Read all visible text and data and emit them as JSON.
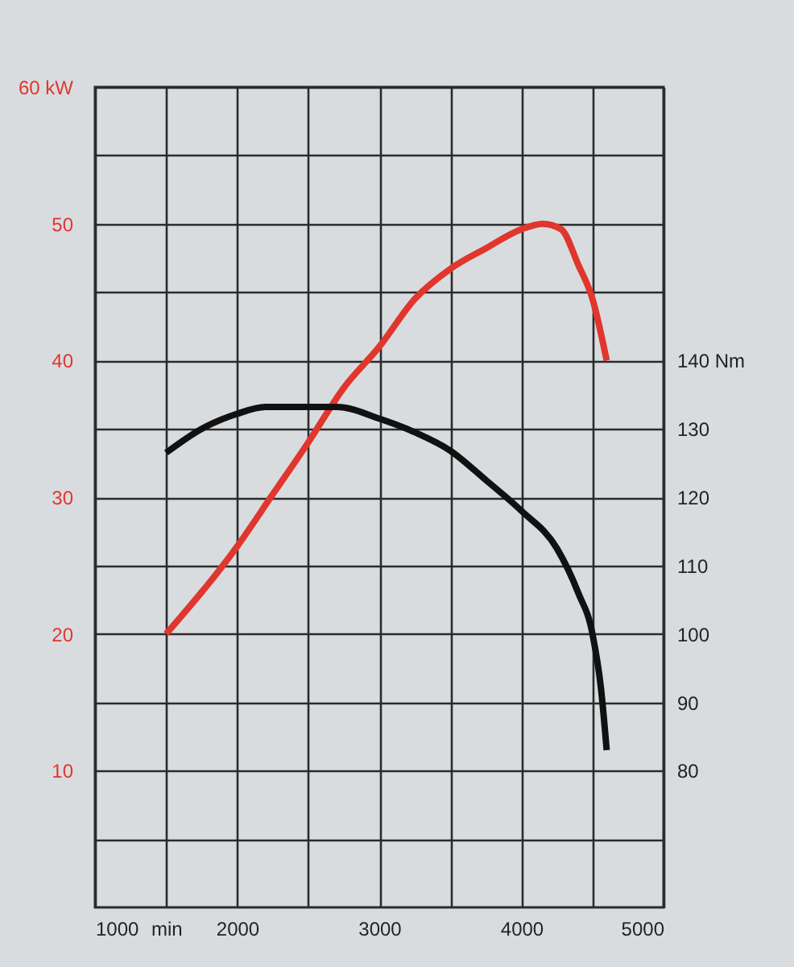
{
  "chart_data": {
    "type": "line",
    "grid": true,
    "xlim": [
      1000,
      5000
    ],
    "xticks": [
      1000,
      {
        "value": 1500,
        "label": "min"
      },
      2000,
      {
        "value": 2500,
        "label": null
      },
      3000,
      {
        "value": 3500,
        "label": null
      },
      4000,
      {
        "value": 4500,
        "label": null
      },
      5000
    ],
    "ylim": [
      0,
      60
    ],
    "yticks": [
      {
        "value": 5,
        "label": null
      },
      10,
      {
        "value": 15,
        "label": null
      },
      20,
      {
        "value": 25,
        "label": null
      },
      30,
      {
        "value": 35,
        "label": null
      },
      40,
      {
        "value": 45,
        "label": null
      },
      50,
      {
        "value": 55,
        "label": null
      },
      {
        "value": 60,
        "label": "60 kW"
      }
    ],
    "y2lim": [
      60,
      180
    ],
    "y2ticks": [
      80,
      90,
      100,
      110,
      120,
      130,
      {
        "value": 140,
        "label": "140 Nm"
      }
    ],
    "series": [
      {
        "color": "#e0362d",
        "x": [
          1500,
          2000,
          2250,
          2500,
          2750,
          3000,
          3250,
          3500,
          3750,
          4000,
          4150,
          4280,
          4400,
          4500,
          4600
        ],
        "values": [
          20,
          26.4,
          30.2,
          34,
          38,
          41,
          44.5,
          46.7,
          48.2,
          49.6,
          50,
          49.6,
          47,
          44.5,
          40
        ]
      },
      {
        "color": "#111111",
        "axis": "y2",
        "x": [
          1500,
          1750,
          2000,
          2200,
          2700,
          3000,
          3250,
          3500,
          3750,
          4000,
          4250,
          4400,
          4500,
          4560,
          4600
        ],
        "values": [
          126.5,
          130,
          132.2,
          133.2,
          133.2,
          131.5,
          129.5,
          126.8,
          122.5,
          118,
          112.5,
          106,
          100,
          92,
          83
        ]
      }
    ]
  }
}
